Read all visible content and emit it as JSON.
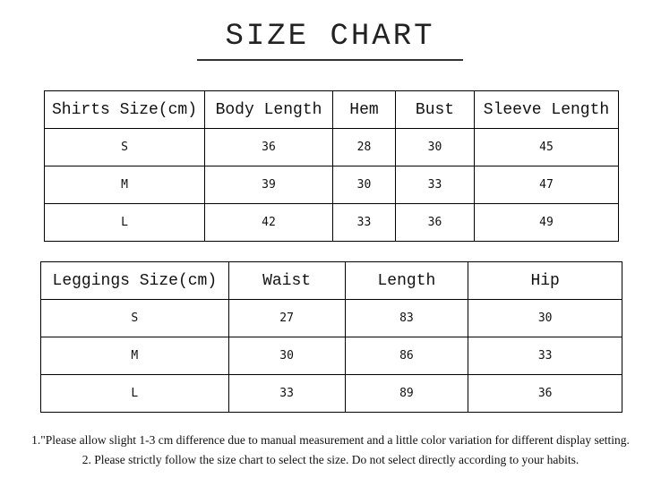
{
  "title": "SIZE CHART",
  "shirts": {
    "headers": [
      "Shirts Size(cm)",
      "Body Length",
      "Hem",
      "Bust",
      "Sleeve Length"
    ],
    "rows": [
      [
        "S",
        "36",
        "28",
        "30",
        "45"
      ],
      [
        "M",
        "39",
        "30",
        "33",
        "47"
      ],
      [
        "L",
        "42",
        "33",
        "36",
        "49"
      ]
    ]
  },
  "leggings": {
    "headers": [
      "Leggings Size(cm)",
      "Waist",
      "Length",
      "Hip"
    ],
    "rows": [
      [
        "S",
        "27",
        "83",
        "30"
      ],
      [
        "M",
        "30",
        "86",
        "33"
      ],
      [
        "L",
        "33",
        "89",
        "36"
      ]
    ]
  },
  "notes": [
    "1.\"Please allow slight 1-3 cm difference due to manual measurement and a little color variation for different display setting.",
    "2. Please strictly follow the size chart to select the size. Do not select directly according to your habits."
  ]
}
